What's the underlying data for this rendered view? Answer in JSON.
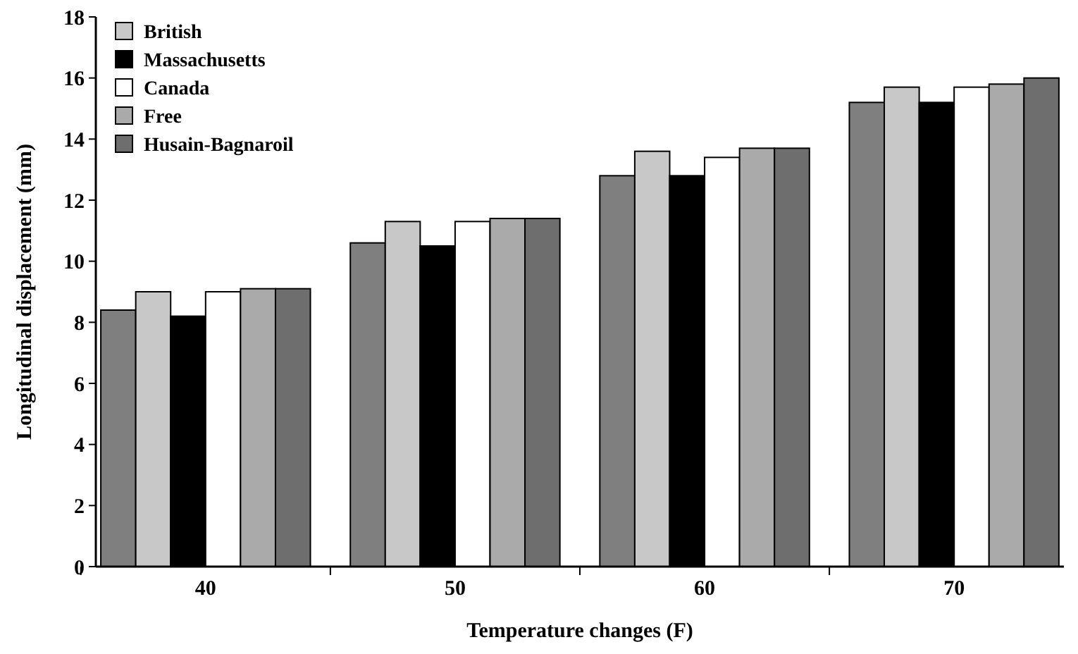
{
  "chart_data": {
    "type": "bar",
    "xlabel": "Temperature changes (F)",
    "ylabel": "Longitudinal displacement (mm)",
    "categories": [
      "40",
      "50",
      "60",
      "70"
    ],
    "ylim": [
      0,
      18
    ],
    "yticks": [
      0,
      2,
      4,
      6,
      8,
      10,
      12,
      14,
      16,
      18
    ],
    "grid": false,
    "legend": "top left",
    "series": [
      {
        "color": "#7f7f7f",
        "values": [
          8.4,
          10.6,
          12.8,
          15.2
        ]
      },
      {
        "name": "British",
        "color": "#c8c8c8",
        "values": [
          9.0,
          11.3,
          13.6,
          15.7
        ]
      },
      {
        "name": "Massachusetts",
        "color": "#000000",
        "values": [
          8.2,
          10.5,
          12.8,
          15.2
        ]
      },
      {
        "name": "Canada",
        "color": "#ffffff",
        "values": [
          9.0,
          11.3,
          13.4,
          15.7
        ]
      },
      {
        "name": "Free",
        "color": "#aaaaaa",
        "values": [
          9.1,
          11.4,
          13.7,
          15.8
        ]
      },
      {
        "name": "Husain-Bagnaroil",
        "color": "#6e6e6e",
        "values": [
          9.1,
          11.4,
          13.7,
          16.0
        ]
      }
    ]
  }
}
